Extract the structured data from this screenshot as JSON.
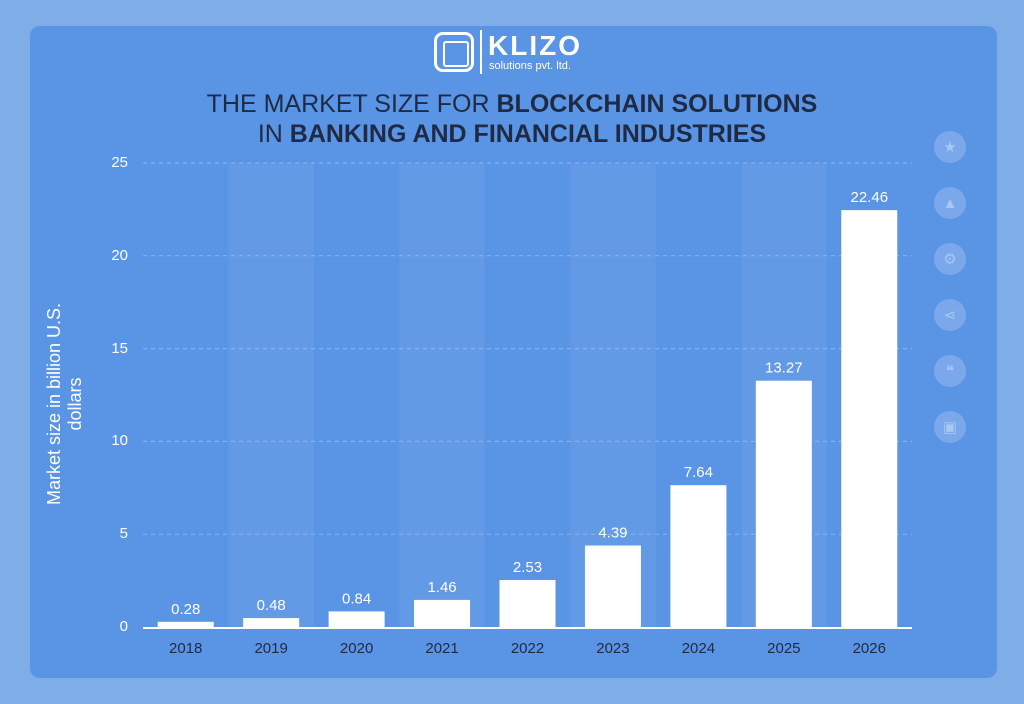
{
  "brand": {
    "name": "KLIZO",
    "tagline": "solutions pvt. ltd."
  },
  "title": {
    "line1_light": "THE MARKET SIZE FOR ",
    "line1_bold": "BLOCKCHAIN SOLUTIONS",
    "line2_light": "IN ",
    "line2_bold": "BANKING AND FINANCIAL INDUSTRIES"
  },
  "sidebar_icons": [
    "star-icon",
    "bell-icon",
    "gear-icon",
    "share-icon",
    "quote-icon",
    "print-icon"
  ],
  "chart_data": {
    "type": "bar",
    "categories": [
      "2018",
      "2019",
      "2020",
      "2021",
      "2022",
      "2023",
      "2024",
      "2025",
      "2026"
    ],
    "values": [
      0.28,
      0.48,
      0.84,
      1.46,
      2.53,
      4.39,
      7.64,
      13.27,
      22.46
    ],
    "value_labels": [
      "0.28",
      "0.48",
      "0.84",
      "1.46",
      "2.53",
      "4.39",
      "7.64",
      "13.27",
      "22.46"
    ],
    "ylabel": "Market size in billion U.S. dollars",
    "ylim": [
      0,
      25
    ],
    "yticks": [
      0,
      5,
      10,
      15,
      20,
      25
    ],
    "grid": true,
    "colors": {
      "bar": "#ffffff",
      "text": "#1f2a44",
      "band": "#6a9fe7"
    }
  }
}
